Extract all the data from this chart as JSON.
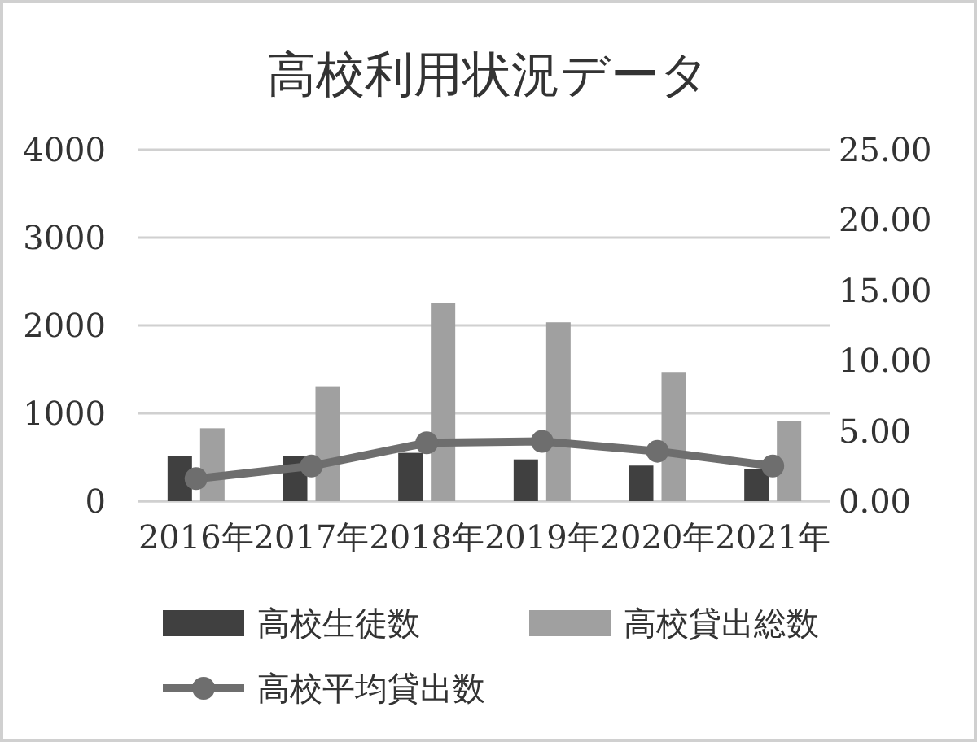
{
  "chart_data": {
    "type": "bar",
    "title": "高校利用状況データ",
    "categories": [
      "2016年",
      "2017年",
      "2018年",
      "2019年",
      "2020年",
      "2021年"
    ],
    "series": [
      {
        "name": "高校生徒数",
        "color": "#404040",
        "values": [
          510,
          510,
          550,
          475,
          405,
          370
        ]
      },
      {
        "name": "高校貸出総数",
        "color": "#a0a0a0",
        "values": [
          830,
          1300,
          2250,
          2035,
          1470,
          915
        ]
      },
      {
        "name": "高校平均貸出数",
        "color": "#6e6e6e",
        "type": "line",
        "axis": "y2",
        "marker": "circle",
        "values": [
          1.6,
          2.5,
          4.15,
          4.25,
          3.55,
          2.5
        ]
      }
    ],
    "ylim": [
      0,
      4000
    ],
    "yticks": [
      0,
      1000,
      2000,
      3000,
      4000
    ],
    "y2lim": [
      0,
      25
    ],
    "y2ticks": [
      {
        "value": 0,
        "label": "0.00"
      },
      {
        "value": 5,
        "label": "5.00"
      },
      {
        "value": 10,
        "label": "10.00"
      },
      {
        "value": 15,
        "label": "15.00"
      },
      {
        "value": 20,
        "label": "20.00"
      },
      {
        "value": 25,
        "label": "25.00"
      }
    ],
    "grid": "y",
    "legend": "bottom"
  }
}
